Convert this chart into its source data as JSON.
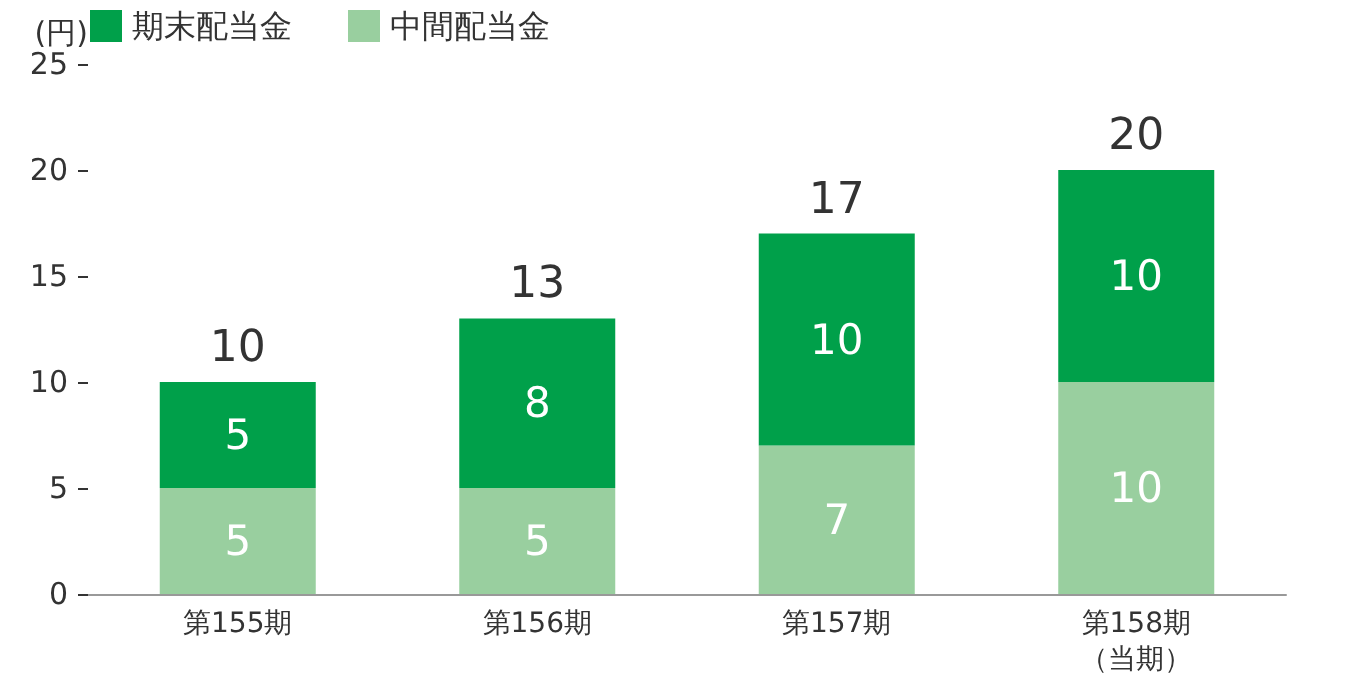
{
  "chart_data": {
    "type": "bar",
    "ylabel": "(円)",
    "categories": [
      "第155期",
      "第156期",
      "第157期",
      "第158期（当期）"
    ],
    "series": [
      {
        "name": "中間配当金",
        "color": "#99cf9f",
        "values": [
          5,
          5,
          7,
          10
        ]
      },
      {
        "name": "期末配当金",
        "color": "#00a04a",
        "values": [
          5,
          8,
          10,
          10
        ]
      }
    ],
    "stacked": true,
    "data_labels": true,
    "totals": [
      "10",
      "13",
      "17",
      "20"
    ],
    "ylim": [
      0,
      25
    ],
    "yticks": [
      0,
      5,
      10,
      15,
      20,
      25
    ],
    "grid": false,
    "legend": "top left"
  }
}
